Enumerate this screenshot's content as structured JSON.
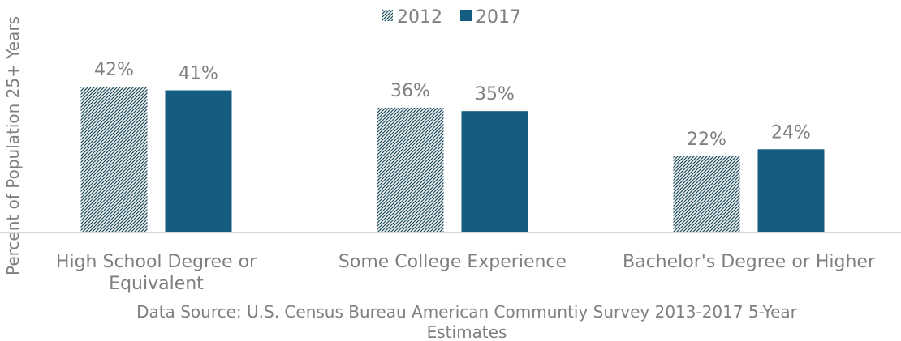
{
  "chart_data": {
    "type": "bar",
    "categories": [
      [
        "High School Degree or",
        "Equivalent"
      ],
      [
        "Some College Experience"
      ],
      [
        "Bachelor's Degree or Higher"
      ]
    ],
    "series": [
      {
        "name": "2012",
        "values": [
          42,
          36,
          22
        ],
        "labels": [
          "42%",
          "36%",
          "22%"
        ],
        "pattern": "diagonal-hatch",
        "color": "#1f4e5f"
      },
      {
        "name": "2017",
        "values": [
          41,
          35,
          24
        ],
        "labels": [
          "41%",
          "35%",
          "24%"
        ],
        "pattern": "solid",
        "color": "#145c80"
      }
    ],
    "ylabel": "Percent of Population 25+ Years",
    "ylim": [
      0,
      50
    ],
    "grid": false,
    "legend": "top-center",
    "source_note": [
      "Data Source: U.S. Census Bureau American Communtiy Survey 2013-2017 5-Year",
      "Estimates"
    ],
    "colors": {
      "axis": "#d9d9d9",
      "text": "#7f7f7f"
    }
  }
}
